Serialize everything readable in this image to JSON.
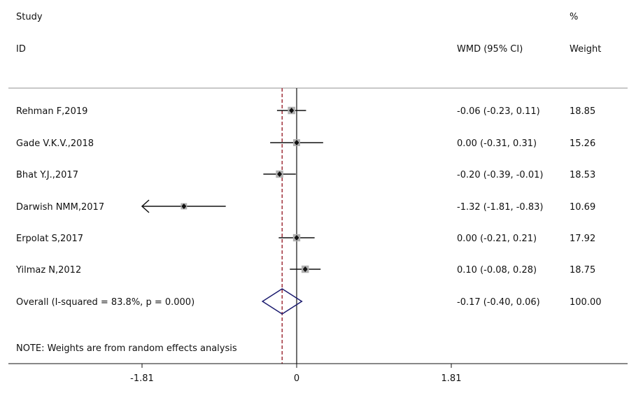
{
  "chart_data": {
    "type": "forest",
    "header": {
      "study_line1": "Study",
      "study_line2": "ID",
      "effect_label": "WMD (95% CI)",
      "weight_line1": "%",
      "weight_line2": "Weight"
    },
    "studies": [
      {
        "label": "Rehman F,2019",
        "estimate": -0.06,
        "lower": -0.23,
        "upper": 0.11,
        "ci_text": "-0.06 (-0.23, 0.11)",
        "weight": "18.85"
      },
      {
        "label": "Gade V.K.V.,2018",
        "estimate": 0.0,
        "lower": -0.31,
        "upper": 0.31,
        "ci_text": "0.00 (-0.31, 0.31)",
        "weight": "15.26"
      },
      {
        "label": "Bhat Y.J.,2017",
        "estimate": -0.2,
        "lower": -0.39,
        "upper": -0.01,
        "ci_text": "-0.20 (-0.39, -0.01)",
        "weight": "18.53"
      },
      {
        "label": "Darwish NMM,2017",
        "estimate": -1.32,
        "lower": -1.81,
        "upper": -0.83,
        "ci_text": "-1.32 (-1.81, -0.83)",
        "weight": "10.69"
      },
      {
        "label": "Erpolat S,2017",
        "estimate": 0.0,
        "lower": -0.21,
        "upper": 0.21,
        "ci_text": "0.00 (-0.21, 0.21)",
        "weight": "17.92"
      },
      {
        "label": "Yilmaz N,2012",
        "estimate": 0.1,
        "lower": -0.08,
        "upper": 0.28,
        "ci_text": "0.10 (-0.08, 0.28)",
        "weight": "18.75"
      }
    ],
    "overall": {
      "label": "Overall  (I-squared = 83.8%, p = 0.000)",
      "estimate": -0.17,
      "lower": -0.4,
      "upper": 0.06,
      "ci_text": "-0.17 (-0.40, 0.06)",
      "weight": "100.00"
    },
    "note": "NOTE: Weights are from random effects analysis",
    "xlim": [
      -1.81,
      1.81
    ],
    "ticks": [
      -1.81,
      0,
      1.81
    ],
    "tick_labels": [
      "-1.81",
      "0",
      "1.81"
    ],
    "colors": {
      "diamond": "#1a1a6e",
      "overall_line": "#a0303a",
      "box": "#b0b0b0",
      "rule": "#c8c8c8"
    }
  }
}
